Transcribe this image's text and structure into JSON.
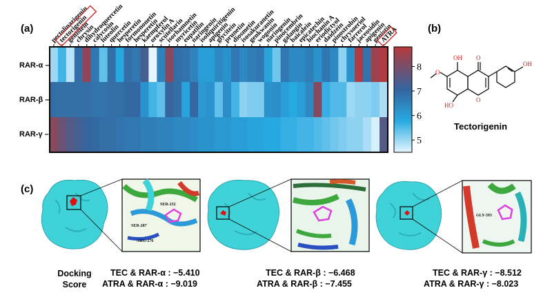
{
  "figure": {
    "panel_a_label": "(a)",
    "panel_b_label": "(b)",
    "panel_c_label": "(c)"
  },
  "chart_data": {
    "type": "heatmap",
    "columns": [
      "pectolinarigenin",
      "tectorigenin",
      "genistein",
      "chrysin",
      "dihydroquercetin",
      "calycosin",
      "luteolin",
      "quercetin",
      "hesperetin",
      "formononetin",
      "hesperetin",
      "kaempferol",
      "oroxylin A",
      "scutellarin",
      "isorhamnetin",
      "myricetin",
      "eupatilin",
      "naringenin",
      "isoliquiritigenin",
      "apigenin",
      "glycitein",
      "prunetin",
      "diosmetin",
      "isosakuranetin",
      "genkwanin",
      "wogonin",
      "naringenin",
      "pinocembrin",
      "galangin",
      "baicalein",
      "epicatechin",
      "biochanin A",
      "eriodictyol",
      "daidzein",
      "pinostrobin",
      "chrysoeriol",
      "farrerol",
      "jaceosidin",
      "apigenin",
      "genistin",
      "ATRA"
    ],
    "rows": [
      "RAR-α",
      "RAR-β",
      "RAR-γ"
    ],
    "highlighted_columns": [
      "tectorigenin",
      "ATRA"
    ],
    "values": [
      [
        5.0,
        5.6,
        4.8,
        6.9,
        8.3,
        6.7,
        5.4,
        6.9,
        5.8,
        6.9,
        6.7,
        7.3,
        4.5,
        6.5,
        8.2,
        6.9,
        6.8,
        6.5,
        6.0,
        6.0,
        6.4,
        6.2,
        6.7,
        6.4,
        6.6,
        6.7,
        5.9,
        5.3,
        6.7,
        6.4,
        6.4,
        6.6,
        6.2,
        6.7,
        6.4,
        5.1,
        6.2,
        8.7,
        6.8,
        8.5,
        8.7
      ],
      [
        6.9,
        6.9,
        6.9,
        6.9,
        6.9,
        6.8,
        6.8,
        6.9,
        6.9,
        7.0,
        7.0,
        6.2,
        5.6,
        5.4,
        7.1,
        6.9,
        5.9,
        7.0,
        6.1,
        6.2,
        5.4,
        6.3,
        5.6,
        5.1,
        5.2,
        5.2,
        6.2,
        6.3,
        6.0,
        5.8,
        6.0,
        6.4,
        8.2,
        5.7,
        5.5,
        5.5,
        5.0,
        5.1,
        5.1,
        5.2,
        4.9
      ],
      [
        8.2,
        7.8,
        7.5,
        7.3,
        7.1,
        7.0,
        6.9,
        6.9,
        6.8,
        6.7,
        6.7,
        6.6,
        6.6,
        6.5,
        6.5,
        6.4,
        6.4,
        6.3,
        6.2,
        6.2,
        6.1,
        6.1,
        6.0,
        6.0,
        5.9,
        5.9,
        5.8,
        5.8,
        5.7,
        5.7,
        5.6,
        5.6,
        5.5,
        5.4,
        5.3,
        5.2,
        5.1,
        5.1,
        4.9,
        4.6,
        7.5
      ]
    ],
    "colorbar": {
      "min": 4.5,
      "max": 8.8,
      "ticks": [
        "5",
        "6",
        "7",
        "8"
      ]
    }
  },
  "structure": {
    "name": "Tectorigenin",
    "atoms": {
      "OH_top": "OH",
      "O_carbonyl": "O",
      "O_methoxy": "O",
      "HO_bottom": "HO",
      "O_ring": "O",
      "OH_phenyl": "OH"
    }
  },
  "docking": {
    "title_line1": "Docking",
    "title_line2": "Score",
    "panels": [
      {
        "residues": [
          "SER-232",
          "SER-287",
          "ARG-276"
        ],
        "tec_score": "TEC & RAR-α : −5.410",
        "atra_score": "ATRA & RAR-α : −9.019"
      },
      {
        "residues": [],
        "tec_score": "TEC & RAR-β : −6.468",
        "atra_score": "ATRA & RAR-β : −7.455"
      },
      {
        "residues": [
          "GLY-393"
        ],
        "tec_score": "TEC & RAR-γ : −8.512",
        "atra_score": "ATRA & RAR-γ : −8.023"
      }
    ]
  },
  "colors": {
    "heat_low": "#e6f6ff",
    "heat_mid": "#27a9e1",
    "heat_dark": "#35649e",
    "heat_high": "#b53a3c",
    "protein": "#3fd3d9",
    "highlight_box": "#cc2b2b"
  }
}
